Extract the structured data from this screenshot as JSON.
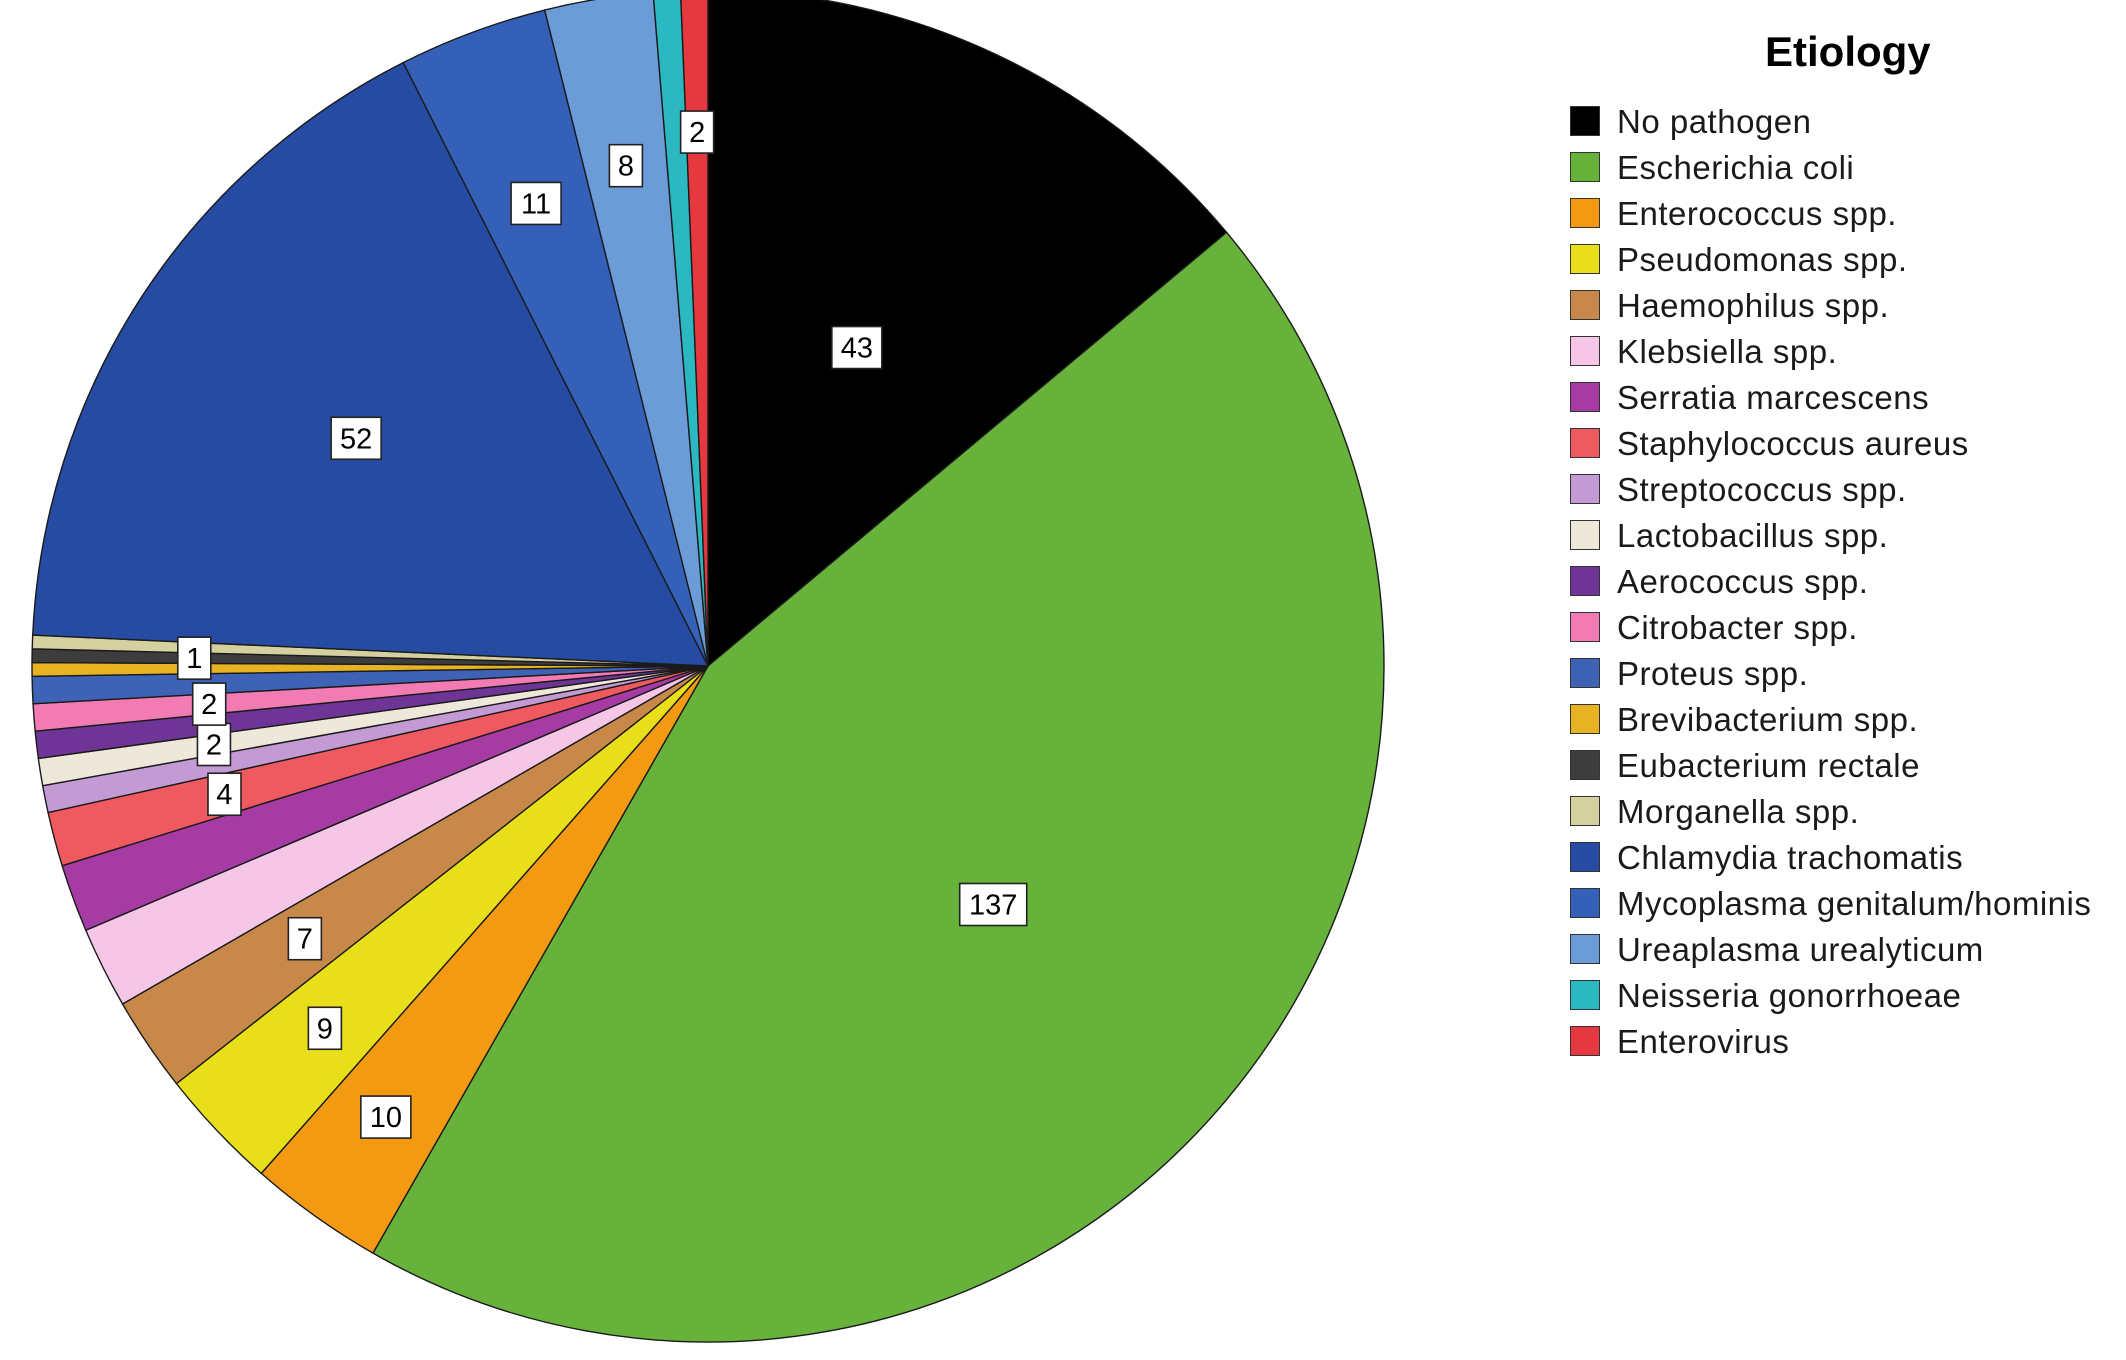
{
  "chart_data": {
    "type": "pie",
    "title": "",
    "legend_title": "Etiology",
    "legend_position": "right",
    "start_angle_deg": 0,
    "direction": "clockwise",
    "slices": [
      {
        "label": "No pathogen",
        "value": 43,
        "color": "#000000",
        "data_label": "43"
      },
      {
        "label": "Escherichia coli",
        "value": 137,
        "color": "#67b23a",
        "data_label": "137"
      },
      {
        "label": "Enterococcus spp.",
        "value": 10,
        "color": "#f39a12",
        "data_label": "10"
      },
      {
        "label": "Pseudomonas spp.",
        "value": 9,
        "color": "#e8de1a",
        "data_label": "9"
      },
      {
        "label": "Haemophilus spp.",
        "value": 7,
        "color": "#c8884a",
        "data_label": "7"
      },
      {
        "label": "Klebsiella spp.",
        "value": 6,
        "color": "#f5c6e6",
        "data_label": ""
      },
      {
        "label": "Serratia marcescens",
        "value": 5,
        "color": "#a63ba4",
        "data_label": ""
      },
      {
        "label": "Staphylococcus aureus",
        "value": 4,
        "color": "#ee5a5f",
        "data_label": "4"
      },
      {
        "label": "Streptococcus spp.",
        "value": 2,
        "color": "#c39ad4",
        "data_label": ""
      },
      {
        "label": "Lactobacillus spp.",
        "value": 2,
        "color": "#ede8da",
        "data_label": "2"
      },
      {
        "label": "Aerococcus spp.",
        "value": 2,
        "color": "#6e3597",
        "data_label": ""
      },
      {
        "label": "Citrobacter spp.",
        "value": 2,
        "color": "#f27bb3",
        "data_label": "2"
      },
      {
        "label": "Proteus spp.",
        "value": 2,
        "color": "#3e62b5",
        "data_label": ""
      },
      {
        "label": "Brevibacterium spp.",
        "value": 1,
        "color": "#e7b322",
        "data_label": ""
      },
      {
        "label": "Eubacterium rectale",
        "value": 1,
        "color": "#3d3d3d",
        "data_label": "1"
      },
      {
        "label": "Morganella spp.",
        "value": 1,
        "color": "#d5d0a0",
        "data_label": ""
      },
      {
        "label": "Chlamydia trachomatis",
        "value": 52,
        "color": "#264ba2",
        "data_label": "52"
      },
      {
        "label": "Mycoplasma genitalum/hominis",
        "value": 11,
        "color": "#3560b8",
        "data_label": "11"
      },
      {
        "label": "Ureaplasma urealyticum",
        "value": 8,
        "color": "#6b9cd8",
        "data_label": "8"
      },
      {
        "label": "Neisseria gonorrhoeae",
        "value": 2,
        "color": "#2bb8c0",
        "data_label": ""
      },
      {
        "label": "Enterovirus",
        "value": 2,
        "color": "#e5383f",
        "data_label": "2"
      }
    ]
  }
}
